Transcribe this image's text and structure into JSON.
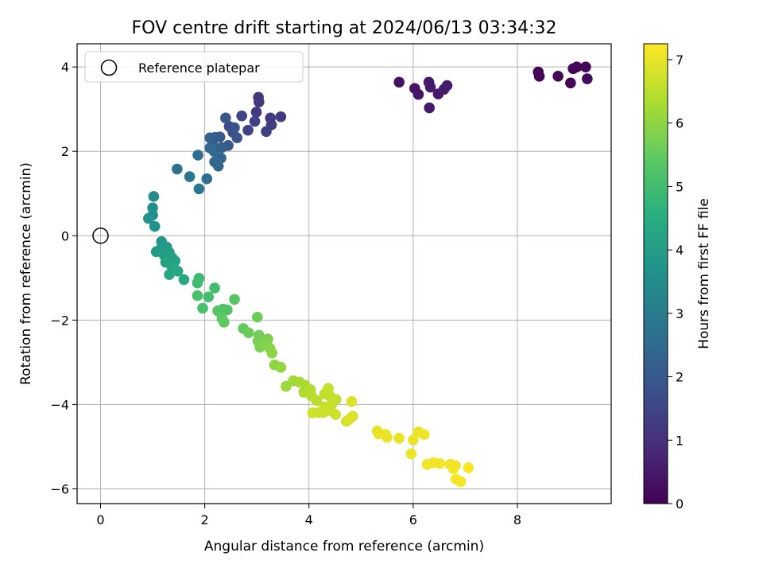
{
  "chart_data": {
    "type": "scatter",
    "title": "FOV centre drift starting at 2024/06/13 03:34:32",
    "xlabel": "Angular distance from reference (arcmin)",
    "ylabel": "Rotation from reference (arcmin)",
    "colorbar_label": "Hours from first FF file",
    "xlim": [
      -0.45,
      9.8
    ],
    "ylim": [
      -6.35,
      4.55
    ],
    "clim": [
      0,
      7.25
    ],
    "colormap": "viridis",
    "grid": true,
    "legend_position": "upper-left",
    "x_ticks": [
      0,
      2,
      4,
      6,
      8
    ],
    "x_tick_labels": [
      "0",
      "2",
      "4",
      "6",
      "8"
    ],
    "y_ticks": [
      4,
      2,
      0,
      -2,
      -4,
      -6
    ],
    "y_tick_labels": [
      "4",
      "2",
      "0",
      "−2",
      "−4",
      "−6"
    ],
    "colorbar_ticks": [
      0,
      1,
      2,
      3,
      4,
      5,
      6,
      7
    ],
    "colorbar_tick_labels": [
      "0",
      "1",
      "2",
      "3",
      "4",
      "5",
      "6",
      "7"
    ],
    "reference": {
      "label": "Reference platepar",
      "x": 0,
      "y": 0
    },
    "points": [
      [
        8.4,
        3.88,
        0.05
      ],
      [
        8.42,
        3.78,
        0.05
      ],
      [
        8.78,
        3.78,
        0.08
      ],
      [
        9.02,
        3.62,
        0.1
      ],
      [
        9.07,
        3.96,
        0.1
      ],
      [
        9.14,
        4.0,
        0.12
      ],
      [
        9.31,
        4.0,
        0.15
      ],
      [
        9.34,
        3.72,
        0.18
      ],
      [
        5.73,
        3.64,
        0.35
      ],
      [
        6.03,
        3.49,
        0.4
      ],
      [
        6.1,
        3.35,
        0.42
      ],
      [
        6.3,
        3.64,
        0.45
      ],
      [
        6.33,
        3.52,
        0.48
      ],
      [
        6.31,
        3.03,
        0.5
      ],
      [
        6.48,
        3.36,
        0.52
      ],
      [
        6.59,
        3.47,
        0.55
      ],
      [
        6.65,
        3.56,
        0.58
      ],
      [
        3.03,
        3.28,
        1.1
      ],
      [
        3.04,
        3.17,
        1.15
      ],
      [
        2.99,
        2.93,
        1.2
      ],
      [
        3.26,
        2.79,
        1.22
      ],
      [
        3.46,
        2.82,
        1.25
      ],
      [
        3.28,
        2.63,
        1.3
      ],
      [
        3.18,
        2.47,
        1.35
      ],
      [
        2.96,
        2.71,
        1.4
      ],
      [
        2.83,
        2.5,
        1.45
      ],
      [
        2.71,
        2.84,
        1.55
      ],
      [
        2.47,
        2.59,
        1.65
      ],
      [
        2.54,
        2.45,
        1.7
      ],
      [
        2.57,
        2.56,
        1.85
      ],
      [
        2.62,
        2.32,
        1.9
      ],
      [
        2.4,
        2.79,
        1.95
      ],
      [
        2.45,
        2.14,
        2.0
      ],
      [
        2.29,
        2.34,
        2.05
      ],
      [
        2.2,
        2.33,
        2.1
      ],
      [
        2.18,
        2.11,
        2.15
      ],
      [
        2.1,
        2.32,
        2.2
      ],
      [
        2.33,
        2.09,
        2.25
      ],
      [
        2.31,
        1.84,
        2.3
      ],
      [
        2.26,
        1.65,
        2.35
      ],
      [
        2.19,
        1.75,
        2.4
      ],
      [
        2.18,
        2.0,
        2.45
      ],
      [
        2.1,
        2.08,
        2.5
      ],
      [
        2.04,
        1.35,
        2.55
      ],
      [
        1.87,
        1.91,
        2.6
      ],
      [
        1.47,
        1.58,
        2.7
      ],
      [
        1.71,
        1.4,
        2.8
      ],
      [
        1.89,
        1.11,
        2.9
      ],
      [
        1.02,
        0.93,
        3.5
      ],
      [
        1.0,
        0.66,
        3.55
      ],
      [
        1.0,
        0.49,
        3.6
      ],
      [
        0.92,
        0.41,
        3.65
      ],
      [
        1.04,
        0.22,
        3.7
      ],
      [
        1.17,
        -0.14,
        3.8
      ],
      [
        1.27,
        -0.27,
        3.85
      ],
      [
        1.07,
        -0.38,
        3.9
      ],
      [
        1.14,
        -0.33,
        3.95
      ],
      [
        1.22,
        -0.46,
        4.0
      ],
      [
        1.32,
        -0.4,
        4.05
      ],
      [
        1.38,
        -0.53,
        4.1
      ],
      [
        1.43,
        -0.6,
        4.15
      ],
      [
        1.25,
        -0.63,
        4.2
      ],
      [
        1.37,
        -0.73,
        4.25
      ],
      [
        1.32,
        -0.92,
        4.3
      ],
      [
        1.48,
        -0.84,
        4.35
      ],
      [
        1.6,
        -1.04,
        4.4
      ],
      [
        1.89,
        -1.01,
        4.9
      ],
      [
        1.86,
        -1.12,
        4.95
      ],
      [
        2.19,
        -1.24,
        5.0
      ],
      [
        2.07,
        -1.45,
        5.05
      ],
      [
        1.86,
        -1.42,
        5.1
      ],
      [
        1.96,
        -1.72,
        5.15
      ],
      [
        2.35,
        -1.74,
        5.2
      ],
      [
        2.43,
        -1.76,
        5.25
      ],
      [
        2.25,
        -1.78,
        5.3
      ],
      [
        2.57,
        -1.51,
        5.35
      ],
      [
        2.33,
        -1.96,
        5.4
      ],
      [
        2.37,
        -2.05,
        5.45
      ],
      [
        2.74,
        -2.2,
        5.5
      ],
      [
        2.84,
        -2.3,
        5.55
      ],
      [
        3.01,
        -1.93,
        5.6
      ],
      [
        3.04,
        -2.36,
        5.65
      ],
      [
        3.02,
        -2.5,
        5.7
      ],
      [
        3.06,
        -2.64,
        5.75
      ],
      [
        3.21,
        -2.45,
        5.8
      ],
      [
        3.17,
        -2.58,
        5.85
      ],
      [
        3.25,
        -2.67,
        5.9
      ],
      [
        3.29,
        -2.78,
        5.95
      ],
      [
        3.34,
        -3.06,
        6.0
      ],
      [
        3.46,
        -3.12,
        6.05
      ],
      [
        3.56,
        -3.57,
        6.15
      ],
      [
        3.7,
        -3.44,
        6.2
      ],
      [
        3.82,
        -3.47,
        6.25
      ],
      [
        3.92,
        -3.54,
        6.3
      ],
      [
        3.9,
        -3.71,
        6.35
      ],
      [
        4.03,
        -3.65,
        6.4
      ],
      [
        4.05,
        -3.8,
        6.45
      ],
      [
        4.15,
        -3.91,
        6.5
      ],
      [
        4.3,
        -3.75,
        6.55
      ],
      [
        4.4,
        -3.8,
        6.55
      ],
      [
        4.37,
        -3.62,
        6.6
      ],
      [
        4.45,
        -3.97,
        6.6
      ],
      [
        4.52,
        -3.88,
        6.62
      ],
      [
        4.3,
        -4.06,
        6.65
      ],
      [
        4.34,
        -4.12,
        6.65
      ],
      [
        4.42,
        -4.15,
        6.68
      ],
      [
        4.27,
        -4.19,
        6.7
      ],
      [
        4.19,
        -4.19,
        6.7
      ],
      [
        4.07,
        -4.2,
        6.72
      ],
      [
        4.51,
        -4.24,
        6.75
      ],
      [
        4.72,
        -4.4,
        6.8
      ],
      [
        4.84,
        -4.28,
        6.82
      ],
      [
        4.79,
        -4.33,
        6.85
      ],
      [
        4.82,
        -3.93,
        6.85
      ],
      [
        5.31,
        -4.63,
        6.95
      ],
      [
        5.34,
        -4.7,
        7.0
      ],
      [
        5.5,
        -4.78,
        7.0
      ],
      [
        5.47,
        -4.71,
        7.0
      ],
      [
        5.73,
        -4.8,
        7.02
      ],
      [
        5.96,
        -5.17,
        7.05
      ],
      [
        6.0,
        -4.84,
        7.05
      ],
      [
        6.1,
        -4.65,
        7.05
      ],
      [
        6.21,
        -4.71,
        7.08
      ],
      [
        6.27,
        -5.42,
        7.1
      ],
      [
        6.39,
        -5.38,
        7.1
      ],
      [
        6.51,
        -5.4,
        7.12
      ],
      [
        6.71,
        -5.42,
        7.12
      ],
      [
        6.81,
        -5.45,
        7.15
      ],
      [
        6.77,
        -5.52,
        7.15
      ],
      [
        6.82,
        -5.77,
        7.18
      ],
      [
        6.91,
        -5.83,
        7.2
      ],
      [
        7.06,
        -5.5,
        7.2
      ]
    ]
  }
}
